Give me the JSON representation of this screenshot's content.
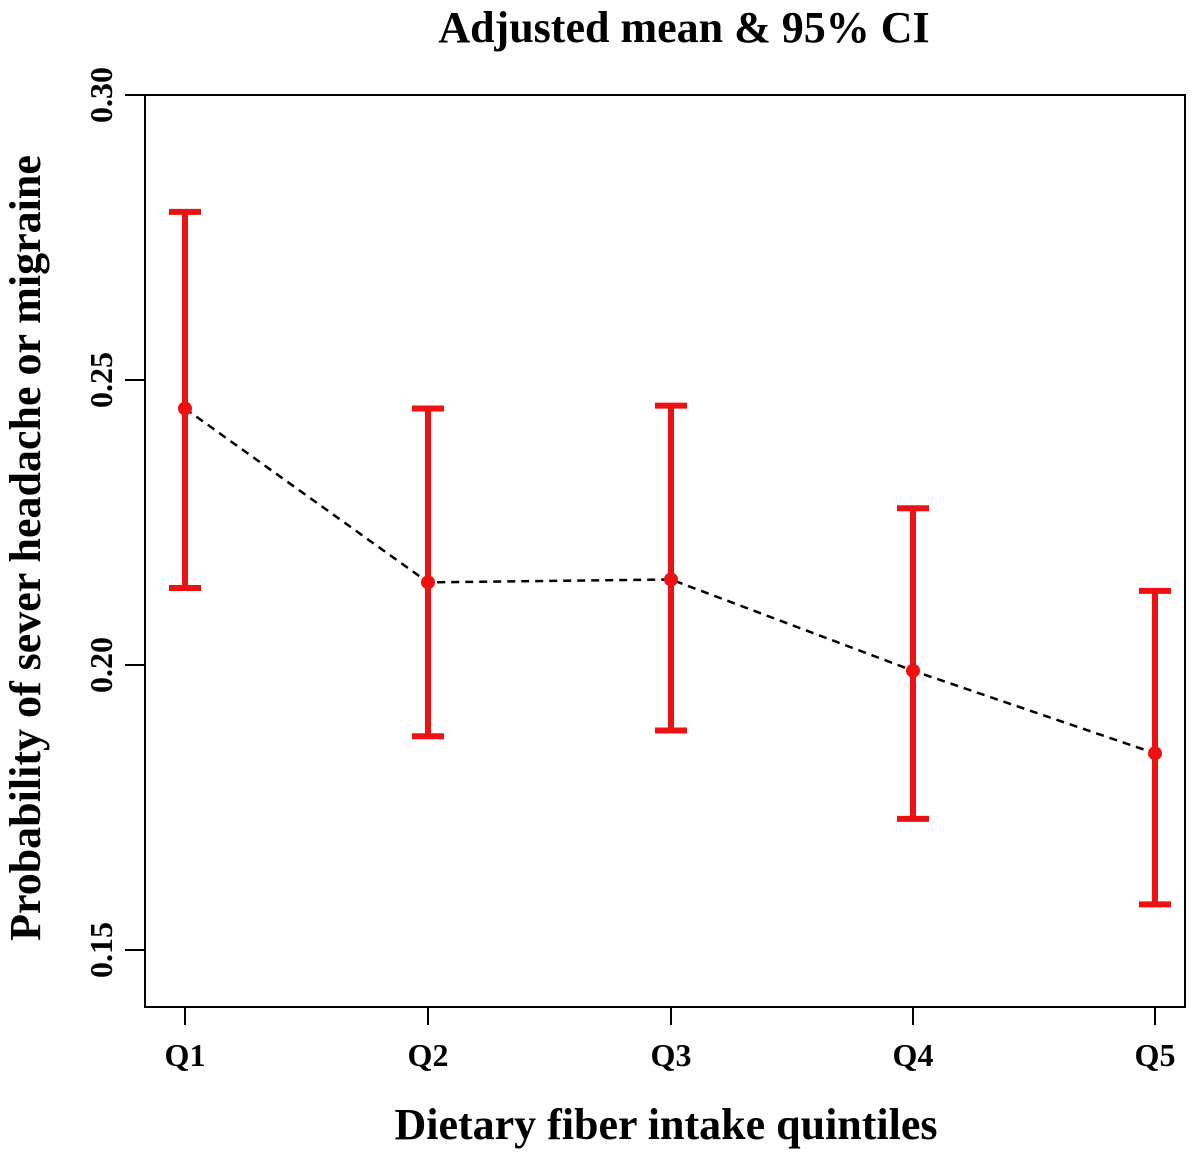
{
  "chart_data": {
    "type": "line",
    "title": "Adjusted mean & 95% CI",
    "xlabel": "Dietary fiber intake quintiles",
    "ylabel": "Probability of sever headache or migraine",
    "categories": [
      "Q1",
      "Q2",
      "Q3",
      "Q4",
      "Q5"
    ],
    "ylim": [
      0.14,
      0.3
    ],
    "yticks": [
      "0.15",
      "0.20",
      "0.25",
      "0.30"
    ],
    "series": [
      {
        "values": [
          0.245,
          0.2145,
          0.215,
          0.199,
          0.1845
        ],
        "ci_lower": [
          0.2135,
          0.1875,
          0.1885,
          0.173,
          0.158
        ],
        "ci_upper": [
          0.2795,
          0.245,
          0.2455,
          0.2275,
          0.213
        ]
      }
    ],
    "grid": false,
    "line_style": "dashed",
    "line_color": "#000000",
    "errorbar_color": "#ee1111",
    "point_color": "#ee1111"
  }
}
